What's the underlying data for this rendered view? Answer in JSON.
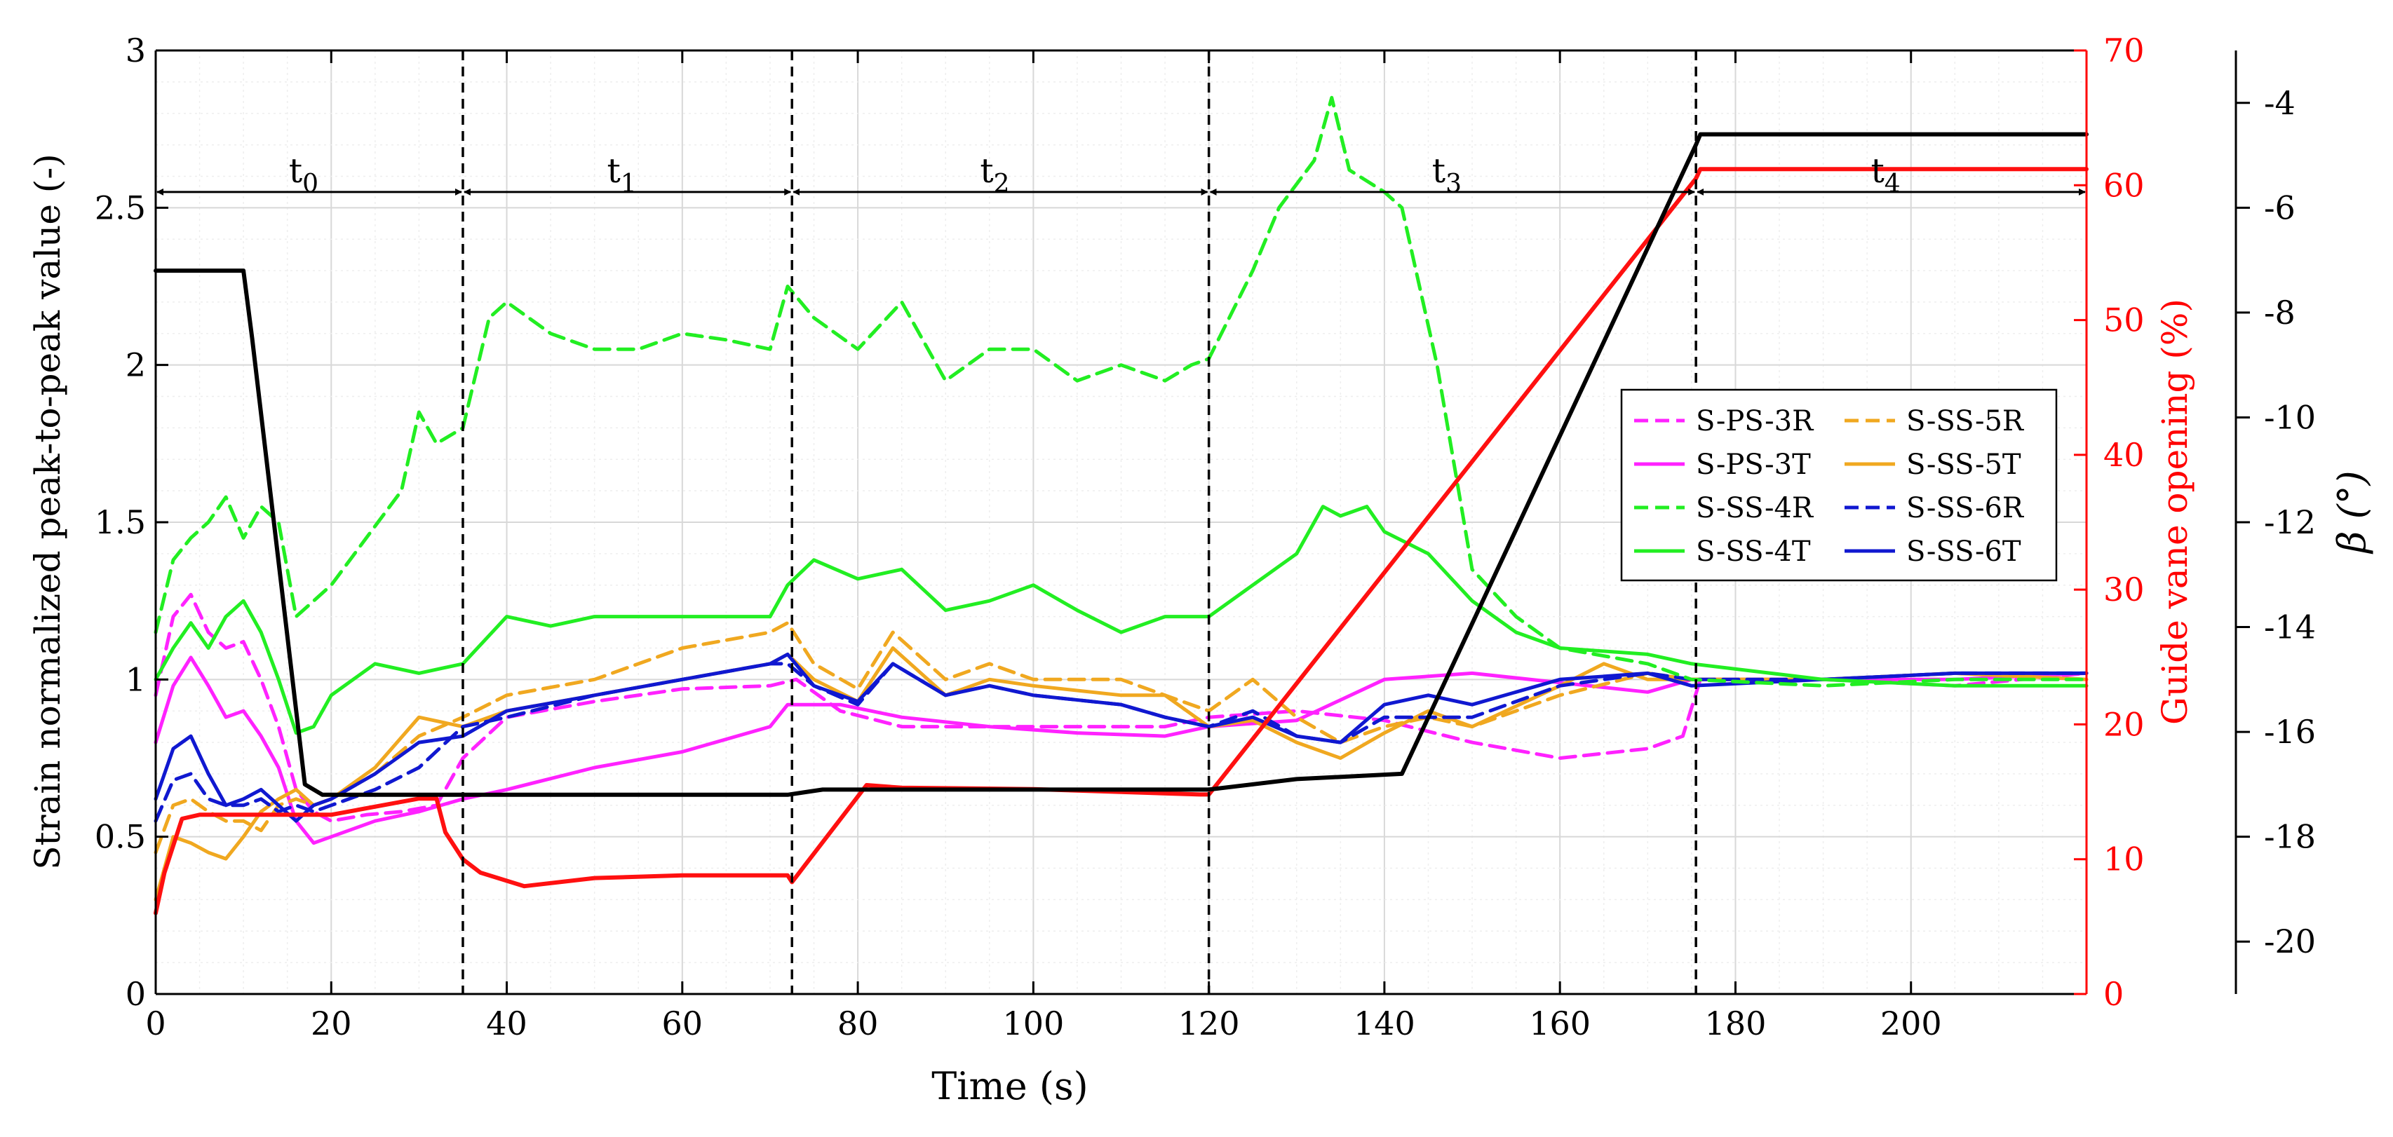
{
  "chart_data": {
    "type": "line",
    "xlabel": "Time (s)",
    "ylabel_left": "Strain normalized peak-to-peak value (-)",
    "ylabel_right1": "Guide vane opening (%)",
    "ylabel_right2": "β (°)",
    "xlim": [
      0,
      220
    ],
    "ylim_left": [
      0,
      3
    ],
    "ylim_right1": [
      0,
      70
    ],
    "ylim_right2": [
      -21,
      -3
    ],
    "x_ticks": [
      "0",
      "20",
      "40",
      "60",
      "80",
      "100",
      "120",
      "140",
      "160",
      "180",
      "200"
    ],
    "y_left_ticks": [
      "0",
      "0.5",
      "1",
      "1.5",
      "2",
      "2.5",
      "3"
    ],
    "y_right1_ticks": [
      "0",
      "10",
      "20",
      "30",
      "40",
      "50",
      "60",
      "70"
    ],
    "y_right2_ticks": [
      "-20",
      "-18",
      "-16",
      "-14",
      "-12",
      "-10",
      "-8",
      "-6",
      "-4"
    ],
    "grid": true,
    "legend_position": "center-right",
    "colors": {
      "magenta": "#ff22ff",
      "orange": "#f0a820",
      "green": "#22ee22",
      "blue": "#1018d0",
      "red": "#ff1010",
      "black": "#000000",
      "right_axis_red": "#ff0000"
    },
    "phase_dividers": [
      35,
      72.5,
      120,
      175.5
    ],
    "phases": [
      {
        "label": "t",
        "sub": "0",
        "from": 0,
        "to": 35
      },
      {
        "label": "t",
        "sub": "1",
        "from": 35,
        "to": 72.5
      },
      {
        "label": "t",
        "sub": "2",
        "from": 72.5,
        "to": 120
      },
      {
        "label": "t",
        "sub": "3",
        "from": 120,
        "to": 175.5
      },
      {
        "label": "t",
        "sub": "4",
        "from": 175.5,
        "to": 220
      }
    ],
    "phase_arrow_level": 2.55,
    "series": [
      {
        "name": "S-PS-3R",
        "color": "magenta",
        "dash": true,
        "axis": "left",
        "x": [
          0,
          2,
          4,
          6,
          8,
          10,
          12,
          14,
          16,
          18,
          20,
          24,
          28,
          32,
          35,
          40,
          50,
          60,
          70,
          73,
          78,
          85,
          95,
          105,
          115,
          120,
          130,
          140,
          150,
          160,
          170,
          174,
          176,
          190,
          205,
          220
        ],
        "y": [
          0.95,
          1.2,
          1.27,
          1.15,
          1.1,
          1.12,
          1.0,
          0.85,
          0.65,
          0.58,
          0.55,
          0.57,
          0.58,
          0.6,
          0.75,
          0.88,
          0.93,
          0.97,
          0.98,
          1.0,
          0.9,
          0.85,
          0.85,
          0.85,
          0.85,
          0.88,
          0.9,
          0.87,
          0.8,
          0.75,
          0.78,
          0.82,
          1.0,
          1.0,
          0.98,
          1.02
        ]
      },
      {
        "name": "S-PS-3T",
        "color": "magenta",
        "dash": false,
        "axis": "left",
        "x": [
          0,
          2,
          4,
          6,
          8,
          10,
          12,
          14,
          16,
          18,
          20,
          25,
          30,
          35,
          40,
          50,
          60,
          70,
          72,
          78,
          85,
          95,
          105,
          115,
          120,
          130,
          140,
          150,
          160,
          170,
          175,
          190,
          205,
          220
        ],
        "y": [
          0.8,
          0.98,
          1.07,
          0.98,
          0.88,
          0.9,
          0.82,
          0.72,
          0.55,
          0.48,
          0.5,
          0.55,
          0.58,
          0.62,
          0.65,
          0.72,
          0.77,
          0.85,
          0.92,
          0.92,
          0.88,
          0.85,
          0.83,
          0.82,
          0.85,
          0.87,
          1.0,
          1.02,
          0.99,
          0.96,
          1.0,
          1.0,
          1.0,
          1.02
        ]
      },
      {
        "name": "S-SS-4R",
        "color": "green",
        "dash": true,
        "axis": "left",
        "x": [
          0,
          2,
          4,
          6,
          8,
          10,
          12,
          14,
          16,
          18,
          20,
          24,
          28,
          30,
          32,
          35,
          38,
          40,
          45,
          50,
          55,
          60,
          65,
          70,
          72,
          75,
          80,
          85,
          90,
          95,
          100,
          105,
          110,
          115,
          118,
          120,
          125,
          128,
          132,
          134,
          136,
          140,
          142,
          146,
          150,
          155,
          160,
          170,
          175,
          190,
          205,
          220
        ],
        "y": [
          1.15,
          1.38,
          1.45,
          1.5,
          1.58,
          1.45,
          1.55,
          1.5,
          1.2,
          1.25,
          1.3,
          1.45,
          1.6,
          1.85,
          1.75,
          1.8,
          2.15,
          2.2,
          2.1,
          2.05,
          2.05,
          2.1,
          2.08,
          2.05,
          2.25,
          2.15,
          2.05,
          2.2,
          1.95,
          2.05,
          2.05,
          1.95,
          2.0,
          1.95,
          2.0,
          2.02,
          2.3,
          2.5,
          2.65,
          2.85,
          2.62,
          2.55,
          2.5,
          2.0,
          1.35,
          1.2,
          1.1,
          1.05,
          1.0,
          0.98,
          1.0,
          1.0
        ]
      },
      {
        "name": "S-SS-4T",
        "color": "green",
        "dash": false,
        "axis": "left",
        "x": [
          0,
          2,
          4,
          6,
          8,
          10,
          12,
          14,
          16,
          18,
          20,
          25,
          30,
          35,
          40,
          45,
          50,
          60,
          70,
          72,
          75,
          80,
          85,
          90,
          95,
          100,
          105,
          110,
          115,
          120,
          125,
          130,
          133,
          135,
          138,
          140,
          145,
          150,
          155,
          160,
          170,
          175,
          190,
          205,
          220
        ],
        "y": [
          1.0,
          1.1,
          1.18,
          1.1,
          1.2,
          1.25,
          1.15,
          1.0,
          0.83,
          0.85,
          0.95,
          1.05,
          1.02,
          1.05,
          1.2,
          1.17,
          1.2,
          1.2,
          1.2,
          1.3,
          1.38,
          1.32,
          1.35,
          1.22,
          1.25,
          1.3,
          1.22,
          1.15,
          1.2,
          1.2,
          1.3,
          1.4,
          1.55,
          1.52,
          1.55,
          1.47,
          1.4,
          1.25,
          1.15,
          1.1,
          1.08,
          1.05,
          1.0,
          0.98,
          0.98
        ]
      },
      {
        "name": "S-SS-5R",
        "color": "orange",
        "dash": true,
        "axis": "left",
        "x": [
          0,
          2,
          4,
          6,
          8,
          10,
          12,
          14,
          16,
          18,
          20,
          25,
          30,
          35,
          40,
          50,
          60,
          70,
          72,
          75,
          80,
          84,
          90,
          95,
          100,
          110,
          115,
          120,
          125,
          130,
          135,
          140,
          145,
          150,
          160,
          170,
          175,
          190,
          205,
          220
        ],
        "y": [
          0.45,
          0.6,
          0.62,
          0.58,
          0.55,
          0.55,
          0.52,
          0.6,
          0.62,
          0.6,
          0.62,
          0.7,
          0.82,
          0.88,
          0.95,
          1.0,
          1.1,
          1.15,
          1.18,
          1.05,
          0.97,
          1.15,
          1.0,
          1.05,
          1.0,
          1.0,
          0.95,
          0.9,
          1.0,
          0.88,
          0.8,
          0.85,
          0.88,
          0.85,
          0.95,
          1.02,
          1.0,
          1.0,
          1.02,
          1.0
        ]
      },
      {
        "name": "S-SS-5T",
        "color": "orange",
        "dash": false,
        "axis": "left",
        "x": [
          0,
          2,
          4,
          6,
          8,
          10,
          12,
          14,
          16,
          18,
          20,
          25,
          30,
          35,
          40,
          50,
          60,
          70,
          72,
          75,
          80,
          84,
          90,
          95,
          100,
          110,
          115,
          120,
          125,
          130,
          135,
          140,
          145,
          150,
          160,
          165,
          170,
          175,
          190,
          205,
          220
        ],
        "y": [
          0.3,
          0.5,
          0.48,
          0.45,
          0.43,
          0.5,
          0.58,
          0.62,
          0.65,
          0.6,
          0.62,
          0.72,
          0.88,
          0.85,
          0.9,
          0.95,
          1.0,
          1.05,
          1.08,
          1.0,
          0.93,
          1.1,
          0.95,
          1.0,
          0.98,
          0.95,
          0.95,
          0.85,
          0.87,
          0.8,
          0.75,
          0.83,
          0.9,
          0.85,
          0.98,
          1.05,
          1.0,
          1.0,
          1.0,
          1.02,
          1.0
        ]
      },
      {
        "name": "S-SS-6R",
        "color": "blue",
        "dash": true,
        "axis": "left",
        "x": [
          0,
          2,
          4,
          6,
          8,
          10,
          12,
          14,
          16,
          18,
          20,
          25,
          30,
          35,
          40,
          50,
          60,
          70,
          72,
          75,
          80,
          84,
          90,
          95,
          100,
          110,
          115,
          120,
          125,
          130,
          135,
          140,
          145,
          150,
          160,
          170,
          175,
          190,
          205,
          220
        ],
        "y": [
          0.55,
          0.68,
          0.7,
          0.62,
          0.6,
          0.6,
          0.62,
          0.58,
          0.6,
          0.58,
          0.6,
          0.65,
          0.72,
          0.85,
          0.88,
          0.95,
          1.0,
          1.05,
          1.05,
          0.98,
          0.92,
          1.05,
          0.95,
          0.98,
          0.95,
          0.92,
          0.88,
          0.85,
          0.9,
          0.82,
          0.8,
          0.88,
          0.88,
          0.88,
          0.98,
          1.02,
          1.0,
          1.0,
          1.02,
          1.02
        ]
      },
      {
        "name": "S-SS-6T",
        "color": "blue",
        "dash": false,
        "axis": "left",
        "x": [
          0,
          2,
          4,
          6,
          8,
          10,
          12,
          14,
          16,
          18,
          20,
          25,
          30,
          35,
          40,
          50,
          60,
          70,
          72,
          75,
          80,
          84,
          90,
          95,
          100,
          110,
          115,
          120,
          125,
          130,
          135,
          140,
          145,
          150,
          160,
          170,
          175,
          190,
          205,
          220
        ],
        "y": [
          0.62,
          0.78,
          0.82,
          0.7,
          0.6,
          0.62,
          0.65,
          0.6,
          0.55,
          0.6,
          0.62,
          0.7,
          0.8,
          0.82,
          0.9,
          0.95,
          1.0,
          1.05,
          1.08,
          0.98,
          0.93,
          1.05,
          0.95,
          0.98,
          0.95,
          0.92,
          0.88,
          0.85,
          0.88,
          0.82,
          0.8,
          0.92,
          0.95,
          0.92,
          1.0,
          1.02,
          0.98,
          1.0,
          1.02,
          1.02
        ]
      },
      {
        "name": "",
        "color": "red",
        "dash": false,
        "axis": "right1",
        "x": [
          0,
          1,
          3,
          5,
          10,
          20,
          30,
          32,
          33,
          35,
          37,
          42,
          50,
          60,
          72,
          72.5,
          81,
          85,
          100,
          119,
          120,
          175.5,
          176,
          200,
          220
        ],
        "y": [
          6,
          9,
          13,
          13.3,
          13.3,
          13.3,
          14.5,
          14.5,
          12,
          10,
          9,
          8,
          8.6,
          8.8,
          8.8,
          8.3,
          15.5,
          15.3,
          15.2,
          14.8,
          14.8,
          60.5,
          61.2,
          61.2,
          61.2
        ]
      },
      {
        "name": "",
        "color": "black",
        "dash": false,
        "axis": "right2",
        "x": [
          0,
          10,
          11,
          17,
          19,
          25,
          35,
          72,
          76,
          100,
          120,
          130,
          142,
          175.5,
          176,
          200,
          220
        ],
        "y": [
          -7.2,
          -7.2,
          -8.5,
          -17,
          -17.2,
          -17.2,
          -17.2,
          -17.2,
          -17.1,
          -17.1,
          -17.1,
          -16.9,
          -16.8,
          -4.8,
          -4.6,
          -4.6,
          -4.6
        ]
      }
    ]
  }
}
